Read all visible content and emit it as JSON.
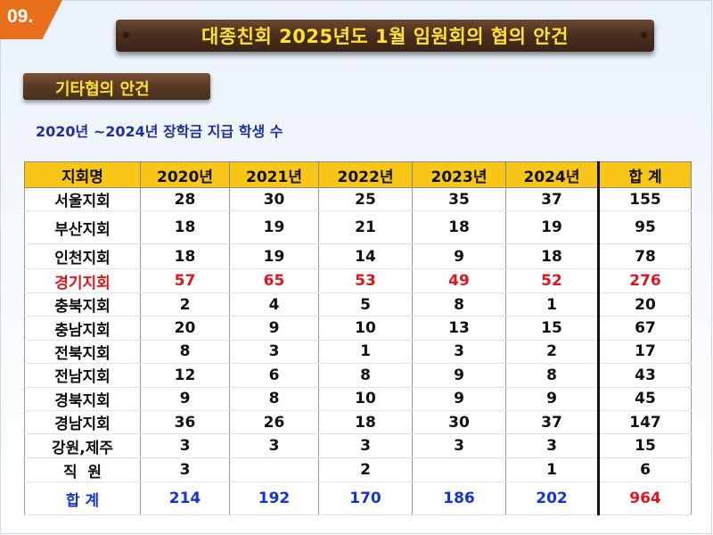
{
  "slide_number": "09.",
  "title": "대종친회 2025년도 1월 임원회의 협의 안건",
  "section": "기타협의 안건",
  "caption": "2020년 ~2024년 장학금 지급 학생 수",
  "colors": {
    "header_bg": "#f8c617",
    "title_text": "#ffe033",
    "accent_red": "#e0141e",
    "accent_blue": "#1534d0",
    "badge": "#e8701a"
  },
  "table": {
    "headers": [
      "지회명",
      "2020년",
      "2021년",
      "2022년",
      "2023년",
      "2024년",
      "합 계"
    ],
    "rows": [
      {
        "name": "서울지회",
        "vals": [
          "28",
          "30",
          "25",
          "35",
          "37"
        ],
        "sum": "155",
        "style": ""
      },
      {
        "name": "부산지회",
        "vals": [
          "18",
          "19",
          "21",
          "18",
          "19"
        ],
        "sum": "95",
        "style": ""
      },
      {
        "name": "인천지회",
        "vals": [
          "18",
          "19",
          "14",
          "9",
          "18"
        ],
        "sum": "78",
        "style": ""
      },
      {
        "name": "경기지회",
        "vals": [
          "57",
          "65",
          "53",
          "49",
          "52"
        ],
        "sum": "276",
        "style": "red"
      },
      {
        "name": "충북지회",
        "vals": [
          "2",
          "4",
          "5",
          "8",
          "1"
        ],
        "sum": "20",
        "style": ""
      },
      {
        "name": "충남지회",
        "vals": [
          "20",
          "9",
          "10",
          "13",
          "15"
        ],
        "sum": "67",
        "style": ""
      },
      {
        "name": "전북지회",
        "vals": [
          "8",
          "3",
          "1",
          "3",
          "2"
        ],
        "sum": "17",
        "style": ""
      },
      {
        "name": "전남지회",
        "vals": [
          "12",
          "6",
          "8",
          "9",
          "8"
        ],
        "sum": "43",
        "style": ""
      },
      {
        "name": "경북지회",
        "vals": [
          "9",
          "8",
          "10",
          "9",
          "9"
        ],
        "sum": "45",
        "style": ""
      },
      {
        "name": "경남지회",
        "vals": [
          "36",
          "26",
          "18",
          "30",
          "37"
        ],
        "sum": "147",
        "style": ""
      },
      {
        "name": "강원,제주",
        "vals": [
          "3",
          "3",
          "3",
          "3",
          "3"
        ],
        "sum": "15",
        "style": ""
      },
      {
        "name": "직  원",
        "vals": [
          "3",
          "",
          "2",
          "",
          "1"
        ],
        "sum": "6",
        "style": ""
      },
      {
        "name": "합 계",
        "vals": [
          "214",
          "192",
          "170",
          "186",
          "202"
        ],
        "sum": "964",
        "style": "total"
      }
    ]
  }
}
